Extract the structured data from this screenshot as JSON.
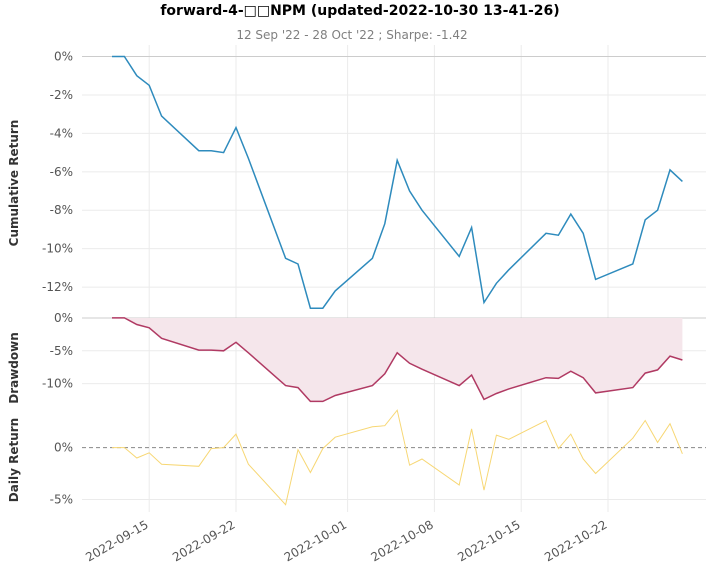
{
  "title": "forward-4-□□NPM (updated-2022-10-30 13-41-26)",
  "subtitle": "12 Sep '22 - 28 Oct '22 ;  Sharpe: -1.42",
  "colors": {
    "cumulative": "#2e8bbd",
    "drawdown_line": "#b03a63",
    "drawdown_fill": "#f5e6eb",
    "daily": "#f7d774",
    "zero_line": "#888888"
  },
  "chart_data": [
    {
      "type": "line",
      "panel": "cumulative",
      "ylabel": "Cumulative Return",
      "ylim": [
        -13.4,
        0.6
      ],
      "yticks": [
        "0%",
        "-2%",
        "-4%",
        "-6%",
        "-8%",
        "-10%",
        "-12%"
      ],
      "ytick_values": [
        0,
        -2,
        -4,
        -6,
        -8,
        -10,
        -12
      ],
      "x": [
        "2022-09-12",
        "2022-09-13",
        "2022-09-14",
        "2022-09-15",
        "2022-09-16",
        "2022-09-19",
        "2022-09-20",
        "2022-09-21",
        "2022-09-22",
        "2022-09-23",
        "2022-09-26",
        "2022-09-27",
        "2022-09-28",
        "2022-09-29",
        "2022-09-30",
        "2022-10-03",
        "2022-10-04",
        "2022-10-05",
        "2022-10-06",
        "2022-10-07",
        "2022-10-10",
        "2022-10-11",
        "2022-10-12",
        "2022-10-13",
        "2022-10-14",
        "2022-10-17",
        "2022-10-18",
        "2022-10-19",
        "2022-10-20",
        "2022-10-21",
        "2022-10-24",
        "2022-10-25",
        "2022-10-26",
        "2022-10-27",
        "2022-10-28"
      ],
      "values": [
        0,
        0,
        -1.0,
        -1.5,
        -3.1,
        -4.9,
        -4.9,
        -5.0,
        -3.7,
        -5.3,
        -10.5,
        -10.8,
        -13.1,
        -13.1,
        -12.2,
        -10.5,
        -8.7,
        -5.4,
        -7.0,
        -8.0,
        -10.4,
        -8.9,
        -12.8,
        -11.8,
        -11.1,
        -9.2,
        -9.3,
        -8.2,
        -9.2,
        -11.6,
        -10.8,
        -8.5,
        -8.0,
        -5.9,
        -6.5
      ]
    },
    {
      "type": "area",
      "panel": "drawdown",
      "ylabel": "Drawdown",
      "ylim": [
        -13.4,
        0.6
      ],
      "yticks": [
        "0%",
        "-5%",
        "-10%"
      ],
      "ytick_values": [
        0,
        -5,
        -10
      ],
      "values": [
        0,
        0,
        -1.0,
        -1.5,
        -3.1,
        -4.9,
        -4.9,
        -5.0,
        -3.7,
        -5.3,
        -10.3,
        -10.6,
        -12.7,
        -12.7,
        -11.8,
        -10.3,
        -8.5,
        -5.3,
        -6.9,
        -7.8,
        -10.3,
        -8.7,
        -12.4,
        -11.5,
        -10.8,
        -9.1,
        -9.2,
        -8.1,
        -9.1,
        -11.4,
        -10.6,
        -8.4,
        -7.9,
        -5.8,
        -6.4
      ]
    },
    {
      "type": "line",
      "panel": "daily",
      "ylabel": "Daily Return",
      "ylim": [
        -6.2,
        4.0
      ],
      "yticks": [
        "0%",
        "-5%"
      ],
      "ytick_values": [
        0,
        -5
      ],
      "values": [
        0,
        0,
        -1.0,
        -0.5,
        -1.6,
        -1.8,
        -0.1,
        0.0,
        1.3,
        -1.6,
        -5.5,
        -0.2,
        -2.4,
        -0.1,
        1.0,
        2.0,
        2.1,
        3.6,
        -1.7,
        -1.1,
        -3.6,
        1.8,
        -4.1,
        1.2,
        0.8,
        2.6,
        -0.1,
        1.3,
        -1.1,
        -2.5,
        0.9,
        2.6,
        0.5,
        2.3,
        -0.6
      ]
    }
  ],
  "xticks": [
    {
      "label": "2022-09-15",
      "date": "2022-09-15"
    },
    {
      "label": "2022-09-22",
      "date": "2022-09-22"
    },
    {
      "label": "2022-10-01",
      "date": "2022-10-01"
    },
    {
      "label": "2022-10-08",
      "date": "2022-10-08"
    },
    {
      "label": "2022-10-15",
      "date": "2022-10-15"
    },
    {
      "label": "2022-10-22",
      "date": "2022-10-22"
    }
  ]
}
